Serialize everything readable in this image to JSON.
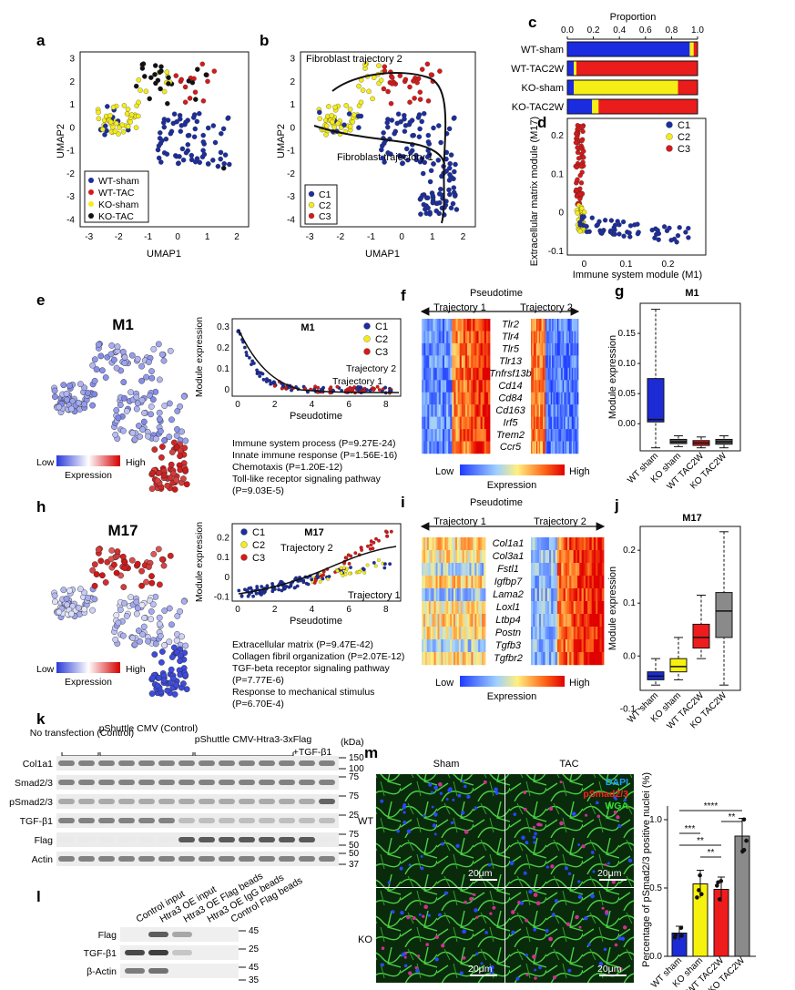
{
  "panels": {
    "a": {
      "label": "a",
      "xlabel": "UMAP1",
      "ylabel": "UMAP2",
      "xticks": [
        "-3",
        "-2",
        "-1",
        "0",
        "1",
        "2"
      ],
      "yticks": [
        "3",
        "2",
        "1",
        "0",
        "-1",
        "-2",
        "-3",
        "-4"
      ],
      "legend": [
        {
          "name": "WT-sham",
          "color": "#1c2e9c"
        },
        {
          "name": "WT-TAC",
          "color": "#d41a1a"
        },
        {
          "name": "KO-sham",
          "color": "#f3ec1b"
        },
        {
          "name": "KO-TAC",
          "color": "#111111"
        }
      ]
    },
    "b": {
      "label": "b",
      "xlabel": "UMAP1",
      "ylabel": "UMAP2",
      "xticks": [
        "-3",
        "-2",
        "-1",
        "0",
        "1",
        "2"
      ],
      "yticks": [
        "3",
        "2",
        "1",
        "0",
        "-1",
        "-2",
        "-3",
        "-4"
      ],
      "traj2": "Fibroblast trajectory 2",
      "traj1": "Fibroblast trajectory 1",
      "legend": [
        {
          "name": "C1",
          "color": "#1c2e9c"
        },
        {
          "name": "C2",
          "color": "#f3ec1b"
        },
        {
          "name": "C3",
          "color": "#d41a1a"
        }
      ]
    },
    "c": {
      "label": "c",
      "axis_title": "Proportion",
      "xticks": [
        "0.0",
        "0.2",
        "0.4",
        "0.6",
        "0.8",
        "1.0"
      ],
      "rows": [
        {
          "name": "WT-sham",
          "blue": 0.94,
          "yellow": 0.03,
          "red": 0.03
        },
        {
          "name": "WT-TAC2W",
          "blue": 0.05,
          "yellow": 0.02,
          "red": 0.93
        },
        {
          "name": "KO-sham",
          "blue": 0.05,
          "yellow": 0.8,
          "red": 0.15
        },
        {
          "name": "KO-TAC2W",
          "blue": 0.19,
          "yellow": 0.05,
          "red": 0.76
        }
      ]
    },
    "d": {
      "label": "d",
      "xlabel": "Immune system module (M1)",
      "ylabel": "Extracellular matrix module (M17)",
      "xticks": [
        "0",
        "0.1",
        "0.2"
      ],
      "yticks": [
        "0.2",
        "0.1",
        "0",
        "-0.1"
      ],
      "legend": [
        "C1",
        "C2",
        "C3"
      ]
    },
    "e": {
      "label": "e",
      "title": "M1",
      "legend_low": "Low",
      "legend_high": "High",
      "legend_title": "Expression",
      "inset_title": "M1",
      "inset_ylabel": "Module expression",
      "inset_xlabel": "Pseudotime",
      "inset_xticks": [
        "0",
        "2",
        "4",
        "6",
        "8"
      ],
      "inset_yticks": [
        "0.3",
        "0.2",
        "0.1",
        "0"
      ],
      "inset_traj2": "Trajectory 2",
      "inset_traj1": "Trajectory 1",
      "inset_legend": [
        "C1",
        "C2",
        "C3"
      ],
      "go_terms": [
        "Immune system process (P=9.27E-24)",
        "Innate immune response (P=1.56E-16)",
        "Chemotaxis (P=1.20E-12)",
        "Toll-like receptor signaling pathway",
        "(P=9.03E-5)"
      ]
    },
    "f": {
      "label": "f",
      "title": "Pseudotime",
      "traj1": "Trajectory 1",
      "traj2": "Trajectory 2",
      "genes": [
        "Tlr2",
        "Tlr4",
        "Tlr5",
        "Tlr13",
        "Tnfrsf13b",
        "Cd14",
        "Cd84",
        "Cd163",
        "Irf5",
        "Trem2",
        "Ccr5"
      ],
      "legend_low": "Low",
      "legend_high": "High",
      "legend_title": "Expression"
    },
    "g": {
      "label": "g",
      "title": "M1",
      "ylabel": "Module expression",
      "yticks": [
        "0.15",
        "0.10",
        "0.05",
        "0.00"
      ],
      "groups": [
        "WT sham",
        "KO sham",
        "WT TAC2W",
        "KO TAC2W"
      ]
    },
    "h": {
      "label": "h",
      "title": "M17",
      "legend_low": "Low",
      "legend_high": "High",
      "legend_title": "Expression",
      "inset_title": "M17",
      "inset_ylabel": "Module expression",
      "inset_xlabel": "Pseudotime",
      "inset_xticks": [
        "0",
        "2",
        "4",
        "6",
        "8"
      ],
      "inset_yticks": [
        "0.2",
        "0.1",
        "0",
        "-0.1"
      ],
      "inset_traj2": "Trajectory 2",
      "inset_traj1": "Trajectory 1",
      "inset_legend": [
        "C1",
        "C2",
        "C3"
      ],
      "go_terms": [
        "Extracellular matrix (P=9.47E-42)",
        "Collagen fibril organization (P=2.07E-12)",
        "TGF-beta receptor signaling pathway",
        "(P=7.77E-6)",
        "Response to mechanical stimulus",
        "(P=6.70E-4)"
      ]
    },
    "i": {
      "label": "i",
      "title": "Pseudotime",
      "traj1": "Trajectory 1",
      "traj2": "Trajectory 2",
      "genes": [
        "Col1a1",
        "Col3a1",
        "Fstl1",
        "Igfbp7",
        "Lama2",
        "Loxl1",
        "Ltbp4",
        "Postn",
        "Tgfb3",
        "Tgfbr2"
      ],
      "legend_low": "Low",
      "legend_high": "High",
      "legend_title": "Expression"
    },
    "j": {
      "label": "j",
      "title": "M17",
      "ylabel": "Module expression",
      "yticks": [
        "0.2",
        "0.1",
        "0.0",
        "-0.1"
      ],
      "groups": [
        "WT sham",
        "KO sham",
        "WT TAC2W",
        "KO TAC2W"
      ]
    },
    "k": {
      "label": "k",
      "group1": "No transfection (Control)",
      "group2": "pShuttle CMV (Control)",
      "group3": "pShuttle CMV-Htra3-3xFlag",
      "group4": "+TGF-β1",
      "kda": "(kDa)",
      "rows": [
        {
          "name": "Col1a1",
          "markers": [
            "150",
            "100"
          ]
        },
        {
          "name": "Smad2/3",
          "markers": [
            "75"
          ]
        },
        {
          "name": "pSmad2/3",
          "markers": [
            "75"
          ]
        },
        {
          "name": "TGF-β1",
          "markers": [
            "25"
          ]
        },
        {
          "name": "Flag",
          "markers": [
            "75",
            "50"
          ]
        },
        {
          "name": "Actin",
          "markers": [
            "50",
            "37"
          ]
        }
      ]
    },
    "l": {
      "label": "l",
      "lanes": [
        "Control input",
        "Htra3 OE input",
        "Htra3 OE Flag beads",
        "Htra3 OE IgG beads",
        "Control Flag beads"
      ],
      "rows": [
        {
          "name": "Flag",
          "markers": [
            "45"
          ]
        },
        {
          "name": "TGF-β1",
          "markers": [
            "25"
          ]
        },
        {
          "name": "β-Actin",
          "markers": [
            "45",
            "35"
          ]
        }
      ]
    },
    "m": {
      "label": "m",
      "col_sham": "Sham",
      "col_tac": "TAC",
      "row_wt": "WT",
      "row_ko": "KO",
      "stain_dapi": "DAPI",
      "stain_psmad": "pSmad2/3",
      "stain_wga": "WGA",
      "scale": "20μm",
      "ylabel": "Percentage of pSmad2/3 positive nuclei (%)",
      "yticks": [
        "1.0",
        "0.5",
        "0.0"
      ],
      "sig": [
        "****",
        "**",
        "***",
        "**",
        "**"
      ],
      "groups": [
        "WT sham",
        "KO sham",
        "WT TAC2W",
        "KO TAC2W"
      ]
    }
  },
  "chart_data": [
    {
      "type": "bar",
      "title": "Proportion",
      "categories": [
        "WT-sham",
        "WT-TAC2W",
        "KO-sham",
        "KO-TAC2W"
      ],
      "series": [
        {
          "name": "C1",
          "values": [
            0.94,
            0.05,
            0.05,
            0.19
          ]
        },
        {
          "name": "C2",
          "values": [
            0.03,
            0.02,
            0.8,
            0.05
          ]
        },
        {
          "name": "C3",
          "values": [
            0.03,
            0.93,
            0.15,
            0.76
          ]
        }
      ],
      "xlim": [
        0,
        1
      ]
    },
    {
      "type": "bar",
      "ylabel": "Percentage of pSmad2/3 positive nuclei (%)",
      "categories": [
        "WT sham",
        "KO sham",
        "WT TAC2W",
        "KO TAC2W"
      ],
      "values": [
        0.17,
        0.53,
        0.49,
        0.88
      ],
      "errors": [
        0.05,
        0.1,
        0.09,
        0.13
      ],
      "colors": [
        "#1c2bd6",
        "#f7f20d",
        "#ee1c1c",
        "#8a8a8a"
      ],
      "ylim": [
        0,
        1.1
      ]
    },
    {
      "type": "box",
      "title": "M1",
      "ylabel": "Module expression",
      "categories": [
        "WT sham",
        "KO sham",
        "WT TAC2W",
        "KO TAC2W"
      ],
      "q1": [
        0.003,
        -0.033,
        -0.036,
        -0.034
      ],
      "median": [
        0.007,
        -0.03,
        -0.032,
        -0.03
      ],
      "q3": [
        0.075,
        -0.026,
        -0.028,
        -0.026
      ],
      "whisker_low": [
        -0.04,
        -0.038,
        -0.04,
        -0.04
      ],
      "whisker_high": [
        0.19,
        -0.02,
        -0.022,
        -0.02
      ]
    },
    {
      "type": "box",
      "title": "M17",
      "ylabel": "Module expression",
      "categories": [
        "WT sham",
        "KO sham",
        "WT TAC2W",
        "KO TAC2W"
      ],
      "q1": [
        -0.045,
        -0.03,
        0.015,
        0.035
      ],
      "median": [
        -0.038,
        -0.02,
        0.035,
        0.085
      ],
      "q3": [
        -0.03,
        -0.005,
        0.06,
        0.12
      ],
      "whisker_low": [
        -0.055,
        -0.045,
        -0.005,
        -0.055
      ],
      "whisker_high": [
        -0.005,
        0.035,
        0.115,
        0.235
      ]
    }
  ]
}
